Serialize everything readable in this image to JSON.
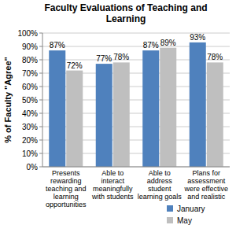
{
  "chart_data": {
    "type": "bar",
    "title": "Faculty Evaluations of Teaching and Learning",
    "y_label": "% of Faculty \"Agree\"",
    "categories": [
      "Presents rewarding teaching and learning opportunities",
      "Able to interact meaningfully with students",
      "Able to address student learning goals",
      "Plans for assessment were effective and realistic"
    ],
    "series": [
      {
        "name": "January",
        "color": "#4f81bd",
        "values": [
          87,
          77,
          87,
          93
        ],
        "value_labels": [
          "87%",
          "77%",
          "87%",
          "93%"
        ]
      },
      {
        "name": "May",
        "color": "#bfbfbf",
        "values": [
          72,
          78,
          89,
          78
        ],
        "value_labels": [
          "72%",
          "78%",
          "89%",
          "78%"
        ]
      }
    ],
    "ylim": [
      0,
      100
    ],
    "yticks": [
      {
        "value": 0,
        "label": "0%"
      },
      {
        "value": 10,
        "label": "10%"
      },
      {
        "value": 20,
        "label": "20%"
      },
      {
        "value": 30,
        "label": "30%"
      },
      {
        "value": 40,
        "label": "40%"
      },
      {
        "value": 50,
        "label": "50%"
      },
      {
        "value": 60,
        "label": "60%"
      },
      {
        "value": 70,
        "label": "70%"
      },
      {
        "value": 80,
        "label": "80%"
      },
      {
        "value": 90,
        "label": "90%"
      },
      {
        "value": 100,
        "label": "100%"
      }
    ],
    "grid": true,
    "data_labels": true,
    "legend": "bottom-right"
  }
}
